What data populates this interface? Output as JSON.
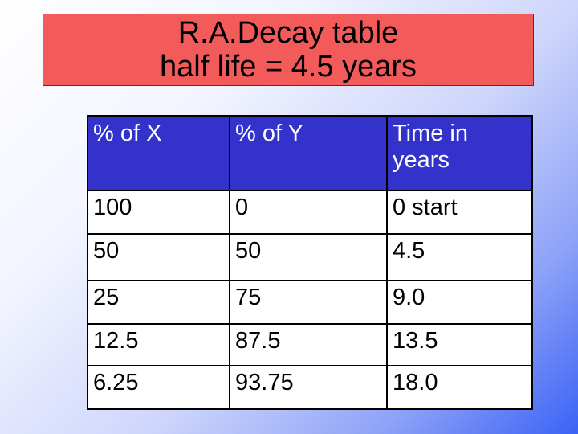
{
  "slide": {
    "title_line1": "R.A.Decay table",
    "title_line2": "half life = 4.5 years",
    "title_bg": "#f35a5a",
    "header_bg": "#3333cc"
  },
  "table": {
    "headers": [
      "% of X",
      "% of Y",
      "Time in years"
    ],
    "rows": [
      [
        "100",
        "0",
        "0 start"
      ],
      [
        "50",
        "50",
        "4.5"
      ],
      [
        "25",
        "75",
        "9.0"
      ],
      [
        "12.5",
        "87.5",
        "13.5"
      ],
      [
        "6.25",
        "93.75",
        "18.0"
      ]
    ]
  }
}
